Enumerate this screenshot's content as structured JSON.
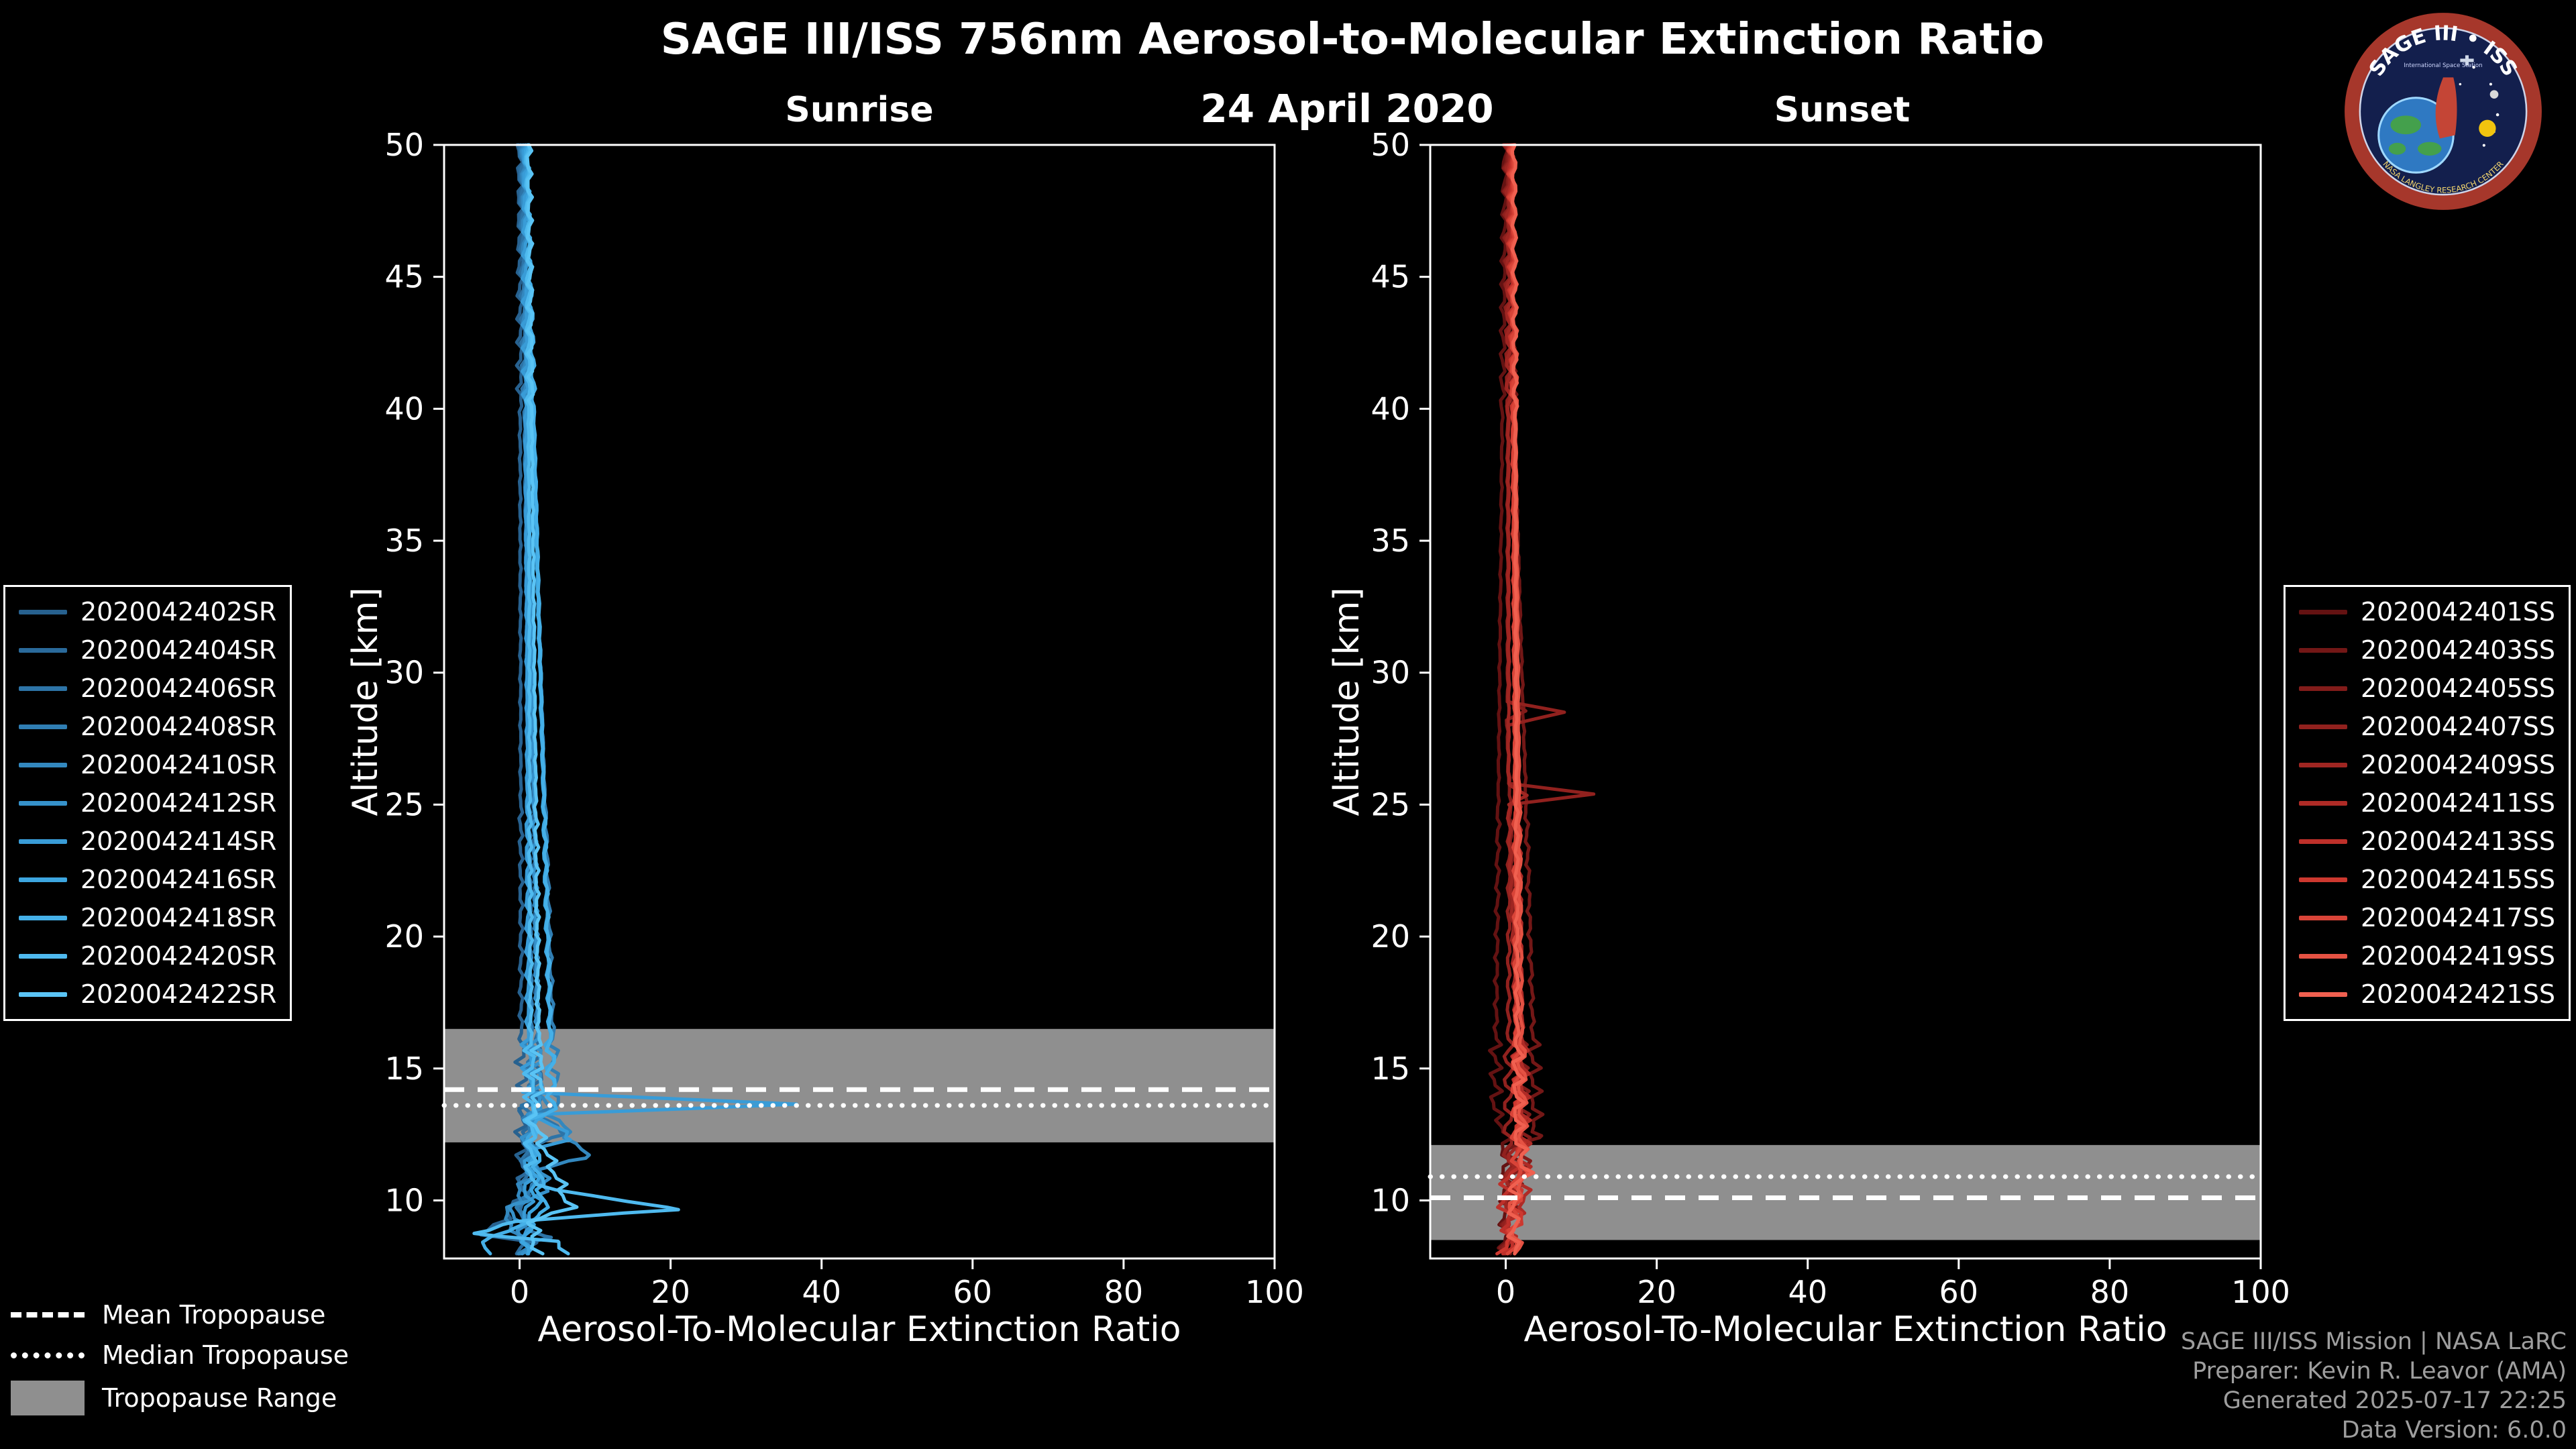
{
  "header": {
    "title": "SAGE III/ISS 756nm Aerosol-to-Molecular Extinction Ratio",
    "date": "24 April 2020"
  },
  "logo": {
    "title": "SAGE III • ISS",
    "subtitle": "International Space Station",
    "ring_text": "NASA LANGLEY RESEARCH CENTER"
  },
  "tropo_legend": {
    "mean": "Mean Tropopause",
    "median": "Median Tropopause",
    "range": "Tropopause Range"
  },
  "footer": {
    "credits": [
      "SAGE III/ISS Mission | NASA LaRC",
      "Preparer: Kevin R. Leavor (AMA)",
      "Generated 2025-07-17 22:25",
      "Data Version: 6.0.0"
    ]
  },
  "colors": {
    "background": "#000000",
    "axis": "#ffffff",
    "tropopause_band": "#8f8f8f",
    "tropopause_lines": "#ffffff"
  },
  "chart_data": [
    {
      "type": "line",
      "title": "Sunrise",
      "xlabel": "Aerosol-To-Molecular Extinction Ratio",
      "ylabel": "Altitude [km]",
      "xlim": [
        -10,
        100
      ],
      "ylim": [
        7.8,
        50
      ],
      "xticks": [
        0,
        20,
        40,
        60,
        80,
        100
      ],
      "yticks": [
        10,
        15,
        20,
        25,
        30,
        35,
        40,
        45,
        50
      ],
      "tropopause": {
        "mean_km": 14.2,
        "median_km": 13.6,
        "range_km": [
          12.2,
          16.5
        ]
      },
      "series": [
        {
          "name": "2020042402SR",
          "color": "#27618f",
          "profile": [
            [
              50,
              0.6
            ],
            [
              16,
              0.8
            ],
            [
              14.2,
              1.2
            ],
            [
              13.8,
              2.6
            ],
            [
              13.3,
              0.8
            ],
            [
              10.2,
              1.0
            ],
            [
              9.3,
              -1.5
            ],
            [
              8.7,
              -4.0
            ],
            [
              8.4,
              2.0
            ]
          ]
        },
        {
          "name": "2020042404SR",
          "color": "#2a6a9b",
          "profile": [
            [
              50,
              0.6
            ],
            [
              13.9,
              3.0
            ],
            [
              13.4,
              0.8
            ],
            [
              11.7,
              2.2
            ],
            [
              11.2,
              0.6
            ],
            [
              9.6,
              1.2
            ],
            [
              8.4,
              0.5
            ]
          ]
        },
        {
          "name": "2020042406SR",
          "color": "#2d74a7",
          "profile": [
            [
              50,
              0.6
            ],
            [
              14.1,
              2.0
            ],
            [
              13.6,
              0.8
            ],
            [
              12.5,
              6.5
            ],
            [
              12.0,
              1.2
            ],
            [
              9.0,
              0.8
            ],
            [
              8.6,
              4.5
            ],
            [
              8.4,
              1.0
            ]
          ]
        },
        {
          "name": "2020042408SR",
          "color": "#307eb3",
          "profile": [
            [
              50,
              0.6
            ],
            [
              13.55,
              5.0
            ],
            [
              13.1,
              0.9
            ],
            [
              10.7,
              3.0
            ],
            [
              10.1,
              0.5
            ],
            [
              8.4,
              0.6
            ]
          ]
        },
        {
          "name": "2020042410SR",
          "color": "#3388bf",
          "profile": [
            [
              50,
              0.6
            ],
            [
              14.4,
              1.5
            ],
            [
              11.6,
              9.0
            ],
            [
              11.1,
              1.5
            ],
            [
              9.1,
              -2.0
            ],
            [
              8.6,
              1.0
            ],
            [
              8.4,
              0.5
            ]
          ]
        },
        {
          "name": "2020042412SR",
          "color": "#3692cb",
          "profile": [
            [
              50,
              0.6
            ],
            [
              13.8,
              2.5
            ],
            [
              12.1,
              0.8
            ],
            [
              10.35,
              4.0
            ],
            [
              9.85,
              -1.0
            ],
            [
              8.4,
              0.6
            ]
          ]
        },
        {
          "name": "2020042414SR",
          "color": "#399cd7",
          "profile": [
            [
              50,
              0.6
            ],
            [
              14.1,
              1.0
            ],
            [
              13.65,
              36.0
            ],
            [
              13.25,
              2.0
            ],
            [
              12.3,
              7.0
            ],
            [
              11.9,
              1.0
            ],
            [
              8.4,
              0.8
            ]
          ]
        },
        {
          "name": "2020042416SR",
          "color": "#3da6e0",
          "profile": [
            [
              50,
              0.6
            ],
            [
              13.35,
              4.0
            ],
            [
              12.7,
              0.9
            ],
            [
              10.0,
              2.0
            ],
            [
              8.4,
              0.5
            ]
          ]
        },
        {
          "name": "2020042418SR",
          "color": "#45b0e8",
          "profile": [
            [
              50,
              0.6
            ],
            [
              13.45,
              4.0
            ],
            [
              13.0,
              1.2
            ],
            [
              9.4,
              3.0
            ],
            [
              8.9,
              -2.0
            ],
            [
              8.4,
              -5.0
            ]
          ]
        },
        {
          "name": "2020042420SR",
          "color": "#4fbaef",
          "profile": [
            [
              50,
              0.6
            ],
            [
              14.0,
              1.0
            ],
            [
              10.6,
              1.0
            ],
            [
              9.65,
              20.0
            ],
            [
              9.2,
              -1.0
            ],
            [
              8.75,
              -7.0
            ],
            [
              8.45,
              5.0
            ]
          ]
        },
        {
          "name": "2020042422SR",
          "color": "#5ac4f5",
          "profile": [
            [
              50,
              0.6
            ],
            [
              13.9,
              2.0
            ],
            [
              13.3,
              0.8
            ],
            [
              9.75,
              6.0
            ],
            [
              9.15,
              1.0
            ],
            [
              8.4,
              1.5
            ]
          ]
        }
      ]
    },
    {
      "type": "line",
      "title": "Sunset",
      "xlabel": "Aerosol-To-Molecular Extinction Ratio",
      "ylabel": "Altitude [km]",
      "xlim": [
        -10,
        100
      ],
      "ylim": [
        7.8,
        50
      ],
      "xticks": [
        0,
        20,
        40,
        60,
        80,
        100
      ],
      "yticks": [
        10,
        15,
        20,
        25,
        30,
        35,
        40,
        45,
        50
      ],
      "tropopause": {
        "mean_km": 10.1,
        "median_km": 10.9,
        "range_km": [
          8.5,
          12.1
        ]
      },
      "series": [
        {
          "name": "2020042401SS",
          "color": "#641212",
          "profile": [
            [
              50,
              0.5
            ],
            [
              13.3,
              -0.8
            ],
            [
              12.7,
              0.5
            ],
            [
              8.4,
              0.5
            ]
          ]
        },
        {
          "name": "2020042403SS",
          "color": "#731716",
          "profile": [
            [
              50,
              0.5
            ],
            [
              12.45,
              4.5
            ],
            [
              11.95,
              1.0
            ],
            [
              10.9,
              2.0
            ],
            [
              8.4,
              0.6
            ]
          ]
        },
        {
          "name": "2020042405SS",
          "color": "#821c1a",
          "profile": [
            [
              50,
              0.5
            ],
            [
              28.9,
              0.8
            ],
            [
              28.55,
              3.0
            ],
            [
              28.2,
              0.5
            ],
            [
              11.35,
              3.0
            ],
            [
              10.8,
              0.8
            ],
            [
              8.4,
              0.5
            ]
          ]
        },
        {
          "name": "2020042407SS",
          "color": "#91211e",
          "profile": [
            [
              50,
              0.5
            ],
            [
              28.9,
              0.5
            ],
            [
              28.5,
              8.0
            ],
            [
              28.0,
              0.5
            ],
            [
              25.8,
              0.6
            ],
            [
              25.4,
              12.0
            ],
            [
              25.0,
              0.7
            ],
            [
              8.4,
              0.5
            ]
          ]
        },
        {
          "name": "2020042409SS",
          "color": "#a02622",
          "profile": [
            [
              50,
              0.5
            ],
            [
              25.75,
              0.5
            ],
            [
              25.35,
              3.0
            ],
            [
              25.0,
              0.5
            ],
            [
              12.1,
              2.0
            ],
            [
              11.6,
              0.6
            ],
            [
              8.4,
              0.5
            ]
          ]
        },
        {
          "name": "2020042411SS",
          "color": "#af2b26",
          "profile": [
            [
              50,
              0.5
            ],
            [
              9.7,
              2.5
            ],
            [
              9.25,
              0.5
            ],
            [
              8.4,
              0.8
            ]
          ]
        },
        {
          "name": "2020042413SS",
          "color": "#be302a",
          "profile": [
            [
              50,
              0.5
            ],
            [
              11.6,
              1.5
            ],
            [
              10.3,
              -0.6
            ],
            [
              8.4,
              0.5
            ]
          ]
        },
        {
          "name": "2020042415SS",
          "color": "#cd382f",
          "profile": [
            [
              50,
              0.5
            ],
            [
              12.9,
              1.2
            ],
            [
              9.1,
              1.5
            ],
            [
              8.4,
              -0.5
            ]
          ]
        },
        {
          "name": "2020042417SS",
          "color": "#d94438",
          "profile": [
            [
              50,
              0.5
            ],
            [
              13.6,
              1.0
            ],
            [
              10.0,
              1.2
            ],
            [
              8.4,
              0.5
            ]
          ]
        },
        {
          "name": "2020042419SS",
          "color": "#e55243",
          "profile": [
            [
              50,
              0.5
            ],
            [
              10.6,
              1.8
            ],
            [
              9.9,
              0.4
            ],
            [
              8.4,
              1.0
            ]
          ]
        },
        {
          "name": "2020042421SS",
          "color": "#f06050",
          "profile": [
            [
              50,
              0.5
            ],
            [
              12.3,
              1.0
            ],
            [
              11.05,
              2.2
            ],
            [
              10.5,
              0.5
            ],
            [
              8.4,
              0.5
            ]
          ]
        }
      ]
    }
  ]
}
